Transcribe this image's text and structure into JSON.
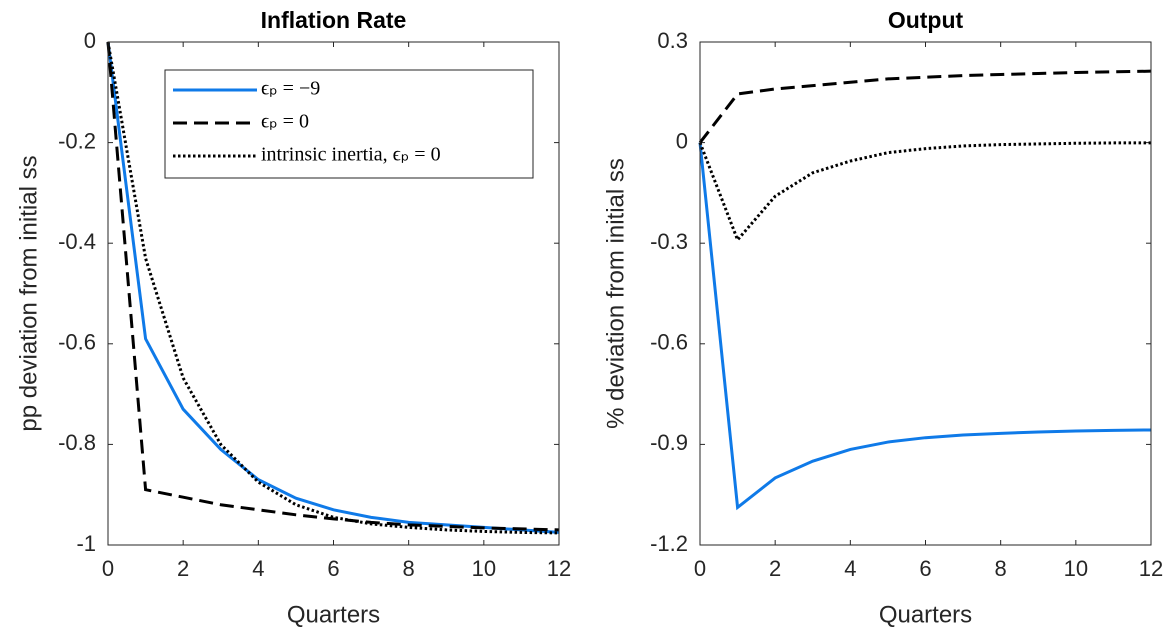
{
  "chart_data": [
    {
      "type": "line",
      "title": "Inflation Rate",
      "x_label": "Quarters",
      "y_label": "pp deviation from initial ss",
      "x": [
        0,
        1,
        2,
        3,
        4,
        5,
        6,
        7,
        8,
        9,
        10,
        11,
        12
      ],
      "series": [
        {
          "name": "ϵₚ = −9",
          "color": "#0f7ae8",
          "dash": "solid",
          "values": [
            0,
            -0.59,
            -0.73,
            -0.81,
            -0.87,
            -0.907,
            -0.93,
            -0.945,
            -0.955,
            -0.96,
            -0.965,
            -0.97,
            -0.975
          ]
        },
        {
          "name": "ϵₚ = 0",
          "color": "#000000",
          "dash": "dashed",
          "values": [
            0,
            -0.89,
            -0.905,
            -0.92,
            -0.93,
            -0.94,
            -0.948,
            -0.955,
            -0.96,
            -0.963,
            -0.966,
            -0.968,
            -0.97
          ]
        },
        {
          "name": "intrinsic inertia, ϵₚ = 0",
          "color": "#000000",
          "dash": "dotted",
          "values": [
            0,
            -0.43,
            -0.668,
            -0.8,
            -0.875,
            -0.92,
            -0.945,
            -0.958,
            -0.965,
            -0.97,
            -0.973,
            -0.975,
            -0.976
          ]
        }
      ],
      "xlim": [
        0,
        12
      ],
      "xticks": [
        0,
        2,
        4,
        6,
        8,
        10,
        12
      ],
      "ylim": [
        -1,
        0
      ],
      "yticks": [
        0,
        -0.2,
        -0.4,
        -0.6,
        -0.8,
        -1
      ],
      "legend": "upper right"
    },
    {
      "type": "line",
      "title": "Output",
      "x_label": "Quarters",
      "y_label": "% deviation from initial ss",
      "x": [
        0,
        1,
        2,
        3,
        4,
        5,
        6,
        7,
        8,
        9,
        10,
        11,
        12
      ],
      "series": [
        {
          "color": "#0f7ae8",
          "dash": "solid",
          "values": [
            0,
            -1.088,
            -1.0,
            -0.95,
            -0.915,
            -0.893,
            -0.88,
            -0.872,
            -0.867,
            -0.863,
            -0.86,
            -0.858,
            -0.857
          ]
        },
        {
          "color": "#000000",
          "dash": "dashed",
          "values": [
            0,
            0.145,
            0.16,
            0.17,
            0.18,
            0.19,
            0.195,
            0.2,
            0.203,
            0.206,
            0.209,
            0.211,
            0.213
          ]
        },
        {
          "color": "#000000",
          "dash": "dotted",
          "values": [
            0,
            -0.29,
            -0.16,
            -0.09,
            -0.055,
            -0.03,
            -0.018,
            -0.01,
            -0.006,
            -0.004,
            -0.002,
            -0.001,
            -0.001
          ]
        }
      ],
      "xlim": [
        0,
        12
      ],
      "xticks": [
        0,
        2,
        4,
        6,
        8,
        10,
        12
      ],
      "ylim": [
        -1.2,
        0.3
      ],
      "yticks": [
        0.3,
        0,
        -0.3,
        -0.6,
        -0.9,
        -1.2
      ]
    }
  ]
}
